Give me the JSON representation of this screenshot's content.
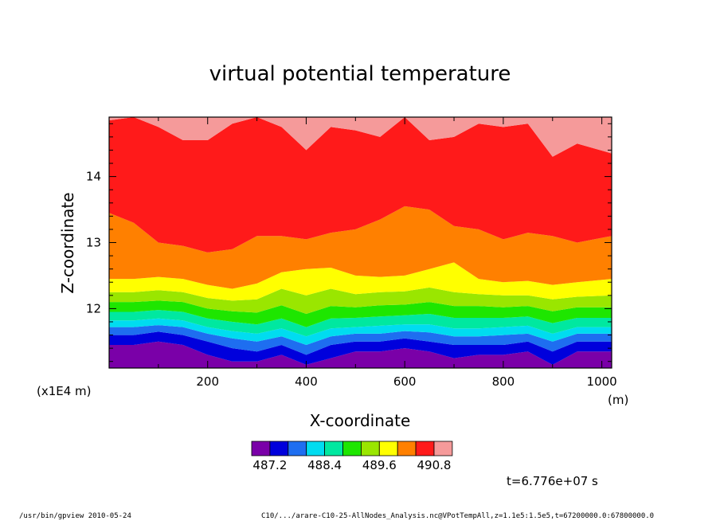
{
  "chart_data": {
    "type": "heatmap",
    "title": "virtual potential temperature",
    "xlabel": "X-coordinate",
    "ylabel": "Z-coordinate",
    "x_unit": "(m)",
    "y_scale_label": "(x1E4 m)",
    "xlim": [
      0,
      1020
    ],
    "ylim": [
      11.1,
      14.9
    ],
    "x_ticks": [
      "200",
      "400",
      "600",
      "800",
      "1000"
    ],
    "y_ticks": [
      "12",
      "13",
      "14"
    ],
    "x_tick_values": [
      200,
      400,
      600,
      800,
      1000
    ],
    "y_tick_values": [
      12,
      13,
      14
    ],
    "levels": [
      487.2,
      487.6,
      488.0,
      488.4,
      488.8,
      489.2,
      489.6,
      490.0,
      490.4,
      490.8
    ],
    "colorbar_labels": [
      "487.2",
      "488.4",
      "489.6",
      "490.8"
    ],
    "colors": [
      "#7a00a8",
      "#0000dc",
      "#1e6ef0",
      "#00dcf0",
      "#00e8a0",
      "#1ee600",
      "#9ae600",
      "#ffff00",
      "#ff8000",
      "#ff1a1a",
      "#f59a9a"
    ],
    "band_boundaries_x": [
      0,
      50,
      100,
      150,
      200,
      250,
      300,
      350,
      400,
      450,
      500,
      550,
      600,
      650,
      700,
      750,
      800,
      850,
      900,
      950,
      1020
    ],
    "band_boundaries_z": [
      [
        11.45,
        11.45,
        11.5,
        11.45,
        11.3,
        11.2,
        11.2,
        11.3,
        11.15,
        11.25,
        11.35,
        11.35,
        11.4,
        11.35,
        11.25,
        11.3,
        11.3,
        11.35,
        11.15,
        11.35,
        11.35
      ],
      [
        11.6,
        11.6,
        11.65,
        11.6,
        11.5,
        11.4,
        11.35,
        11.45,
        11.3,
        11.45,
        11.5,
        11.5,
        11.55,
        11.5,
        11.45,
        11.45,
        11.45,
        11.5,
        11.35,
        11.5,
        11.5
      ],
      [
        11.72,
        11.72,
        11.75,
        11.72,
        11.62,
        11.55,
        11.5,
        11.58,
        11.45,
        11.58,
        11.62,
        11.62,
        11.66,
        11.64,
        11.58,
        11.58,
        11.6,
        11.62,
        11.5,
        11.62,
        11.62
      ],
      [
        11.82,
        11.82,
        11.85,
        11.82,
        11.72,
        11.66,
        11.62,
        11.7,
        11.58,
        11.7,
        11.72,
        11.74,
        11.76,
        11.76,
        11.7,
        11.7,
        11.72,
        11.74,
        11.62,
        11.72,
        11.72
      ],
      [
        11.95,
        11.95,
        11.98,
        11.95,
        11.85,
        11.8,
        11.76,
        11.85,
        11.72,
        11.85,
        11.86,
        11.88,
        11.9,
        11.92,
        11.86,
        11.86,
        11.86,
        11.88,
        11.78,
        11.86,
        11.86
      ],
      [
        12.1,
        12.1,
        12.12,
        12.1,
        12.0,
        11.96,
        11.94,
        12.05,
        11.92,
        12.04,
        12.02,
        12.05,
        12.06,
        12.1,
        12.04,
        12.04,
        12.02,
        12.04,
        11.96,
        12.02,
        12.02
      ],
      [
        12.25,
        12.25,
        12.28,
        12.25,
        12.16,
        12.12,
        12.14,
        12.3,
        12.2,
        12.3,
        12.22,
        12.25,
        12.26,
        12.32,
        12.25,
        12.22,
        12.2,
        12.2,
        12.14,
        12.18,
        12.2
      ],
      [
        12.45,
        12.45,
        12.48,
        12.45,
        12.36,
        12.3,
        12.38,
        12.55,
        12.6,
        12.62,
        12.5,
        12.48,
        12.5,
        12.6,
        12.7,
        12.45,
        12.4,
        12.42,
        12.36,
        12.4,
        12.45
      ],
      [
        13.45,
        13.3,
        13.0,
        12.95,
        12.85,
        12.9,
        13.1,
        13.1,
        13.05,
        13.15,
        13.2,
        13.35,
        13.55,
        13.5,
        13.25,
        13.2,
        13.05,
        13.15,
        13.1,
        13.0,
        13.1
      ],
      [
        14.85,
        14.9,
        14.75,
        14.55,
        14.55,
        14.8,
        14.9,
        14.75,
        14.4,
        14.75,
        14.7,
        14.6,
        14.9,
        14.55,
        14.6,
        14.8,
        14.75,
        14.8,
        14.3,
        14.5,
        14.35
      ]
    ]
  },
  "timestamp_label": "t=6.776e+07 s",
  "footer": {
    "left": "/usr/bin/gpview  2010-05-24",
    "right": "C10/.../arare-C10-25-AllNodes_Analysis.nc@VPotTempAll,z=1.1e5:1.5e5,t=67200000.0:67800000.0"
  }
}
